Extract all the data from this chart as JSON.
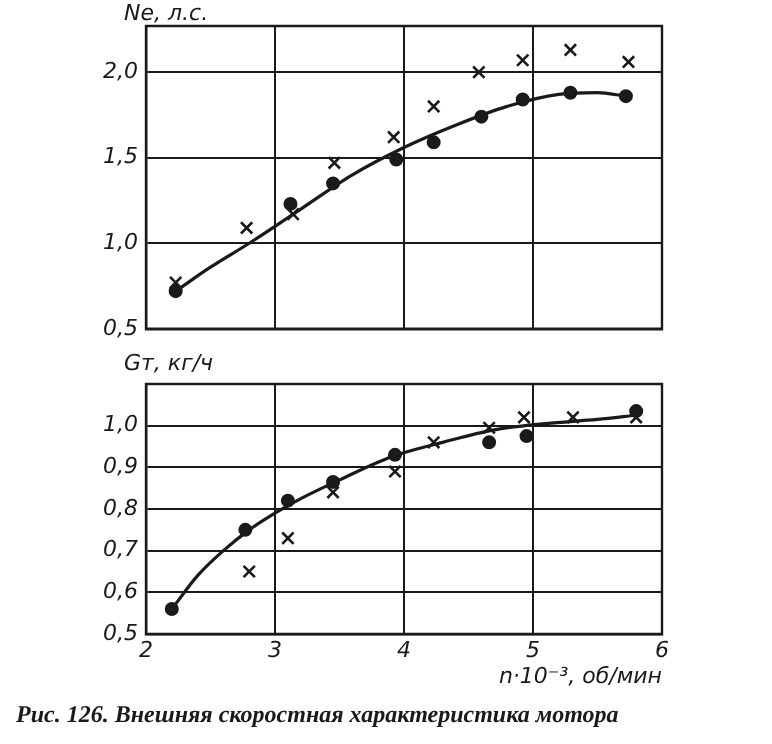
{
  "chart_data": [
    {
      "type": "scatter",
      "ylabel": "Ne, л.с.",
      "xlim": [
        2,
        6
      ],
      "ylim": [
        0.5,
        2.27
      ],
      "xticks": [
        {
          "value": 2,
          "label": null
        },
        {
          "value": 3,
          "label": null
        },
        {
          "value": 4,
          "label": null
        },
        {
          "value": 5,
          "label": null
        },
        {
          "value": 6,
          "label": null
        }
      ],
      "yticks": [
        {
          "value": 0.5,
          "label": "0,5"
        },
        {
          "value": 1.0,
          "label": "1,0"
        },
        {
          "value": 1.5,
          "label": "1,5"
        },
        {
          "value": 2.0,
          "label": "2,0"
        }
      ],
      "grid": true,
      "legend": false,
      "tick_labels": "y",
      "series": [
        {
          "marker": "circle",
          "color": "#1a1a1a",
          "x": [
            2.23,
            3.12,
            3.45,
            3.94,
            4.23,
            4.6,
            4.92,
            5.29,
            5.72
          ],
          "values": [
            0.72,
            1.23,
            1.35,
            1.49,
            1.59,
            1.74,
            1.84,
            1.88,
            1.86
          ]
        },
        {
          "marker": "cross",
          "color": "#1a1a1a",
          "x": [
            2.23,
            2.78,
            3.14,
            3.46,
            3.92,
            4.23,
            4.58,
            4.92,
            5.29,
            5.74
          ],
          "values": [
            0.77,
            1.09,
            1.17,
            1.47,
            1.62,
            1.8,
            2.0,
            2.07,
            2.13,
            2.06
          ]
        },
        {
          "type": "line",
          "marker": "none",
          "line_style": "solid",
          "color": "#1a1a1a",
          "x": [
            2.23,
            2.5,
            2.8,
            3.2,
            3.6,
            4.0,
            4.4,
            4.8,
            5.2,
            5.5,
            5.72
          ],
          "values": [
            0.72,
            0.86,
            1.0,
            1.2,
            1.4,
            1.56,
            1.69,
            1.8,
            1.87,
            1.88,
            1.86
          ]
        }
      ]
    },
    {
      "type": "scatter",
      "ylabel": "Gт, кг/ч",
      "xlabel": "n·10⁻³, об/мин",
      "xlim": [
        2,
        6
      ],
      "ylim": [
        0.5,
        1.1
      ],
      "xticks": [
        2,
        3,
        4,
        5,
        6
      ],
      "yticks": [
        {
          "value": 0.5,
          "label": "0,5"
        },
        {
          "value": 0.6,
          "label": "0,6"
        },
        {
          "value": 0.7,
          "label": "0,7"
        },
        {
          "value": 0.8,
          "label": "0,8"
        },
        {
          "value": 0.9,
          "label": "0,9"
        },
        {
          "value": 1.0,
          "label": "1,0"
        }
      ],
      "grid": true,
      "legend": false,
      "annotations": [
        "Рис. 126. Внешняя скоростная характеристика мотора"
      ],
      "series": [
        {
          "marker": "circle",
          "color": "#1a1a1a",
          "x": [
            2.2,
            2.77,
            3.1,
            3.45,
            3.93,
            4.66,
            4.95,
            5.8
          ],
          "values": [
            0.56,
            0.75,
            0.82,
            0.865,
            0.93,
            0.96,
            0.975,
            1.035
          ]
        },
        {
          "marker": "cross",
          "color": "#1a1a1a",
          "x": [
            2.8,
            3.1,
            3.45,
            3.93,
            4.23,
            4.66,
            4.93,
            5.31,
            5.8
          ],
          "values": [
            0.65,
            0.73,
            0.84,
            0.89,
            0.96,
            0.995,
            1.02,
            1.02,
            1.02
          ]
        },
        {
          "type": "line",
          "marker": "none",
          "line_style": "solid",
          "color": "#1a1a1a",
          "x": [
            2.2,
            2.4,
            2.6,
            2.8,
            3.0,
            3.2,
            3.5,
            3.9,
            4.3,
            4.7,
            5.1,
            5.5,
            5.8
          ],
          "values": [
            0.56,
            0.64,
            0.7,
            0.75,
            0.79,
            0.825,
            0.87,
            0.925,
            0.96,
            0.99,
            1.005,
            1.015,
            1.025
          ]
        }
      ]
    }
  ]
}
